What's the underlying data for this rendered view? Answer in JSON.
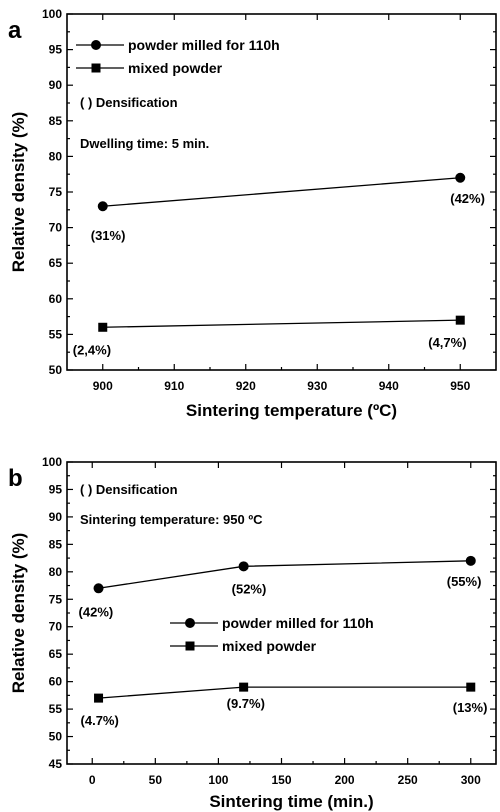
{
  "chart_data": [
    {
      "type": "line",
      "panel_label": "a",
      "xlabel": "Sintering temperature (ºC)",
      "ylabel": "Relative density (%)",
      "x_ticks": [
        "900",
        "910",
        "920",
        "930",
        "940",
        "950"
      ],
      "y_ticks": [
        "50",
        "55",
        "60",
        "65",
        "70",
        "75",
        "80",
        "85",
        "90",
        "95",
        "100"
      ],
      "xlim": [
        895,
        955
      ],
      "ylim": [
        50,
        100
      ],
      "legend_position": "top-left",
      "notes": [
        "( ) Densification",
        "Dwelling time: 5 min."
      ],
      "series": [
        {
          "name": "powder milled for 110h",
          "marker": "circle",
          "x": [
            900,
            950
          ],
          "values": [
            73,
            77
          ],
          "labels": [
            "(31%)",
            "(42%)"
          ]
        },
        {
          "name": "mixed powder",
          "marker": "square",
          "x": [
            900,
            950
          ],
          "values": [
            56,
            57
          ],
          "labels": [
            "(2,4%)",
            "(4,7%)"
          ]
        }
      ]
    },
    {
      "type": "line",
      "panel_label": "b",
      "xlabel": "Sintering time (min.)",
      "ylabel": "Relative density (%)",
      "x_ticks": [
        "0",
        "50",
        "100",
        "150",
        "200",
        "250",
        "300"
      ],
      "y_ticks": [
        "45",
        "50",
        "55",
        "60",
        "65",
        "70",
        "75",
        "80",
        "85",
        "90",
        "95",
        "100"
      ],
      "xlim": [
        -20,
        320
      ],
      "ylim": [
        45,
        100
      ],
      "legend_position": "center",
      "notes": [
        "( ) Densification",
        "Sintering temperature: 950 ºC"
      ],
      "series": [
        {
          "name": "powder milled for 110h",
          "marker": "circle",
          "x": [
            5,
            120,
            300
          ],
          "values": [
            77,
            81,
            82
          ],
          "labels": [
            "(42%)",
            "(52%)",
            "(55%)"
          ]
        },
        {
          "name": "mixed powder",
          "marker": "square",
          "x": [
            5,
            120,
            300
          ],
          "values": [
            57,
            59,
            59
          ],
          "labels": [
            "(4.7%)",
            "(9.7%)",
            "(13%)"
          ]
        }
      ]
    }
  ]
}
